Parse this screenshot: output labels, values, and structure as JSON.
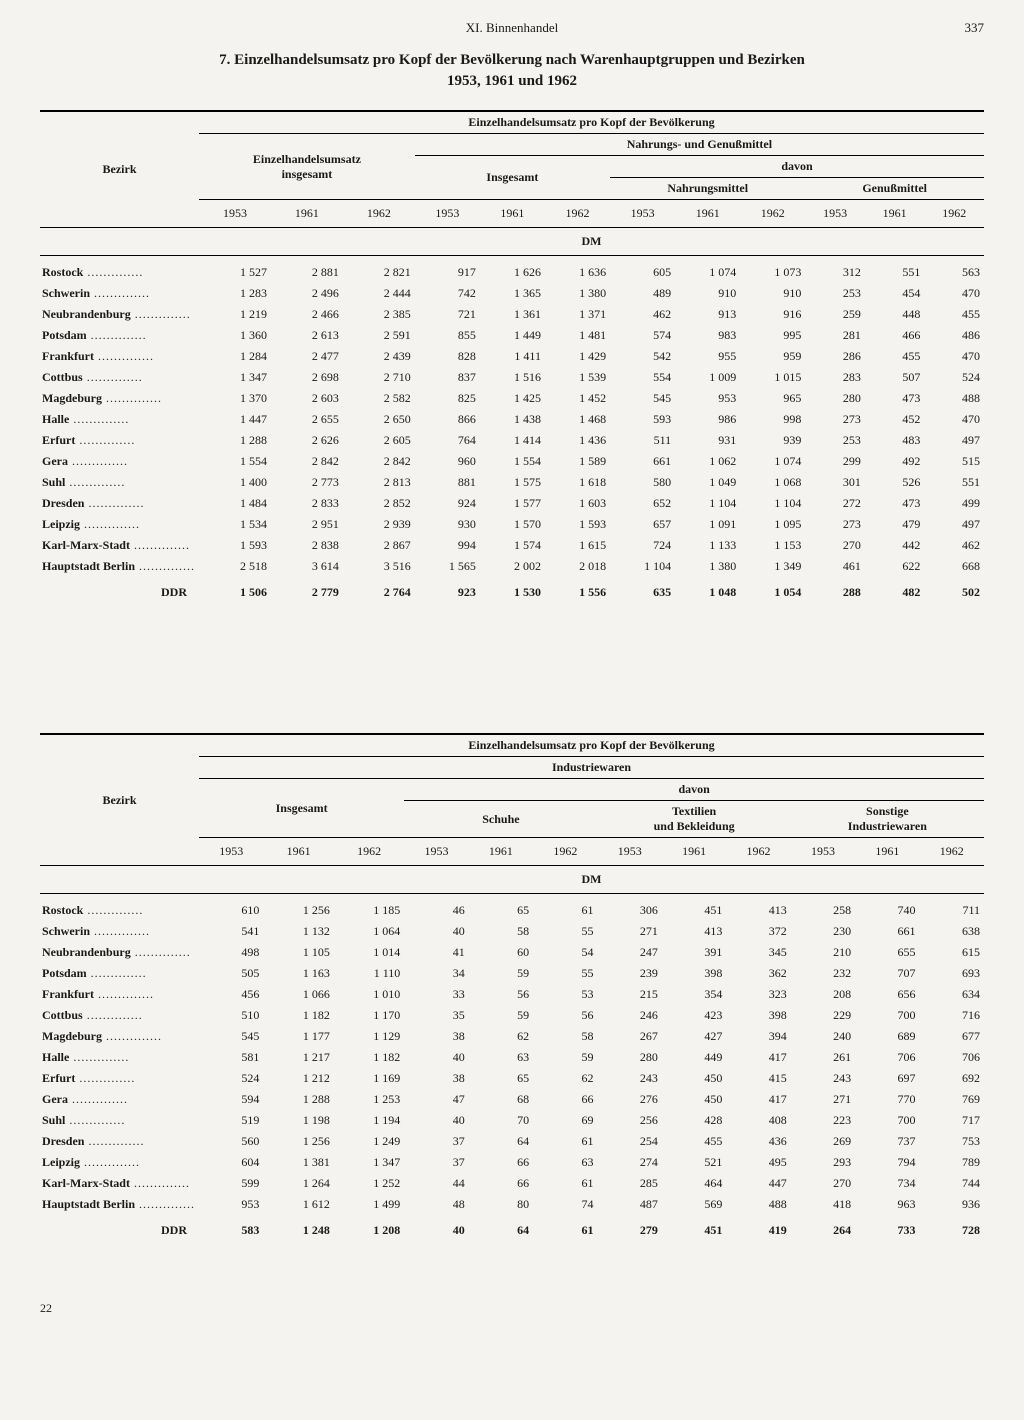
{
  "page": {
    "chapter": "XI. Binnenhandel",
    "pageNumber": "337",
    "footerNumber": "22",
    "tableTitle": "7. Einzelhandelsumsatz pro Kopf der Bevölkerung nach Warenhauptgruppen und Bezirken\n1953, 1961 und 1962"
  },
  "headers": {
    "bezirk": "Bezirk",
    "spanning1": "Einzelhandelsumsatz pro Kopf der Bevölkerung",
    "gesamt": "Einzelhandelsumsatz\ninsgesamt",
    "nahrung": "Nahrungs- und Genußmittel",
    "davon": "davon",
    "insgesamt": "Insgesamt",
    "nahrungsmittel": "Nahrungsmittel",
    "genussmittel": "Genußmittel",
    "industriewaren": "Industriewaren",
    "schuhe": "Schuhe",
    "textilien": "Textilien\nund Bekleidung",
    "sonstige": "Sonstige\nIndustriewaren",
    "y1953": "1953",
    "y1961": "1961",
    "y1962": "1962",
    "unit": "DM",
    "ddr": "DDR"
  },
  "districts": [
    "Rostock",
    "Schwerin",
    "Neubrandenburg",
    "Potsdam",
    "Frankfurt",
    "Cottbus",
    "Magdeburg",
    "Halle",
    "Erfurt",
    "Gera",
    "Suhl",
    "Dresden",
    "Leipzig",
    "Karl-Marx-Stadt",
    "Hauptstadt Berlin"
  ],
  "table1": {
    "rows": [
      [
        "1 527",
        "2 881",
        "2 821",
        "917",
        "1 626",
        "1 636",
        "605",
        "1 074",
        "1 073",
        "312",
        "551",
        "563"
      ],
      [
        "1 283",
        "2 496",
        "2 444",
        "742",
        "1 365",
        "1 380",
        "489",
        "910",
        "910",
        "253",
        "454",
        "470"
      ],
      [
        "1 219",
        "2 466",
        "2 385",
        "721",
        "1 361",
        "1 371",
        "462",
        "913",
        "916",
        "259",
        "448",
        "455"
      ],
      [
        "1 360",
        "2 613",
        "2 591",
        "855",
        "1 449",
        "1 481",
        "574",
        "983",
        "995",
        "281",
        "466",
        "486"
      ],
      [
        "1 284",
        "2 477",
        "2 439",
        "828",
        "1 411",
        "1 429",
        "542",
        "955",
        "959",
        "286",
        "455",
        "470"
      ],
      [
        "1 347",
        "2 698",
        "2 710",
        "837",
        "1 516",
        "1 539",
        "554",
        "1 009",
        "1 015",
        "283",
        "507",
        "524"
      ],
      [
        "1 370",
        "2 603",
        "2 582",
        "825",
        "1 425",
        "1 452",
        "545",
        "953",
        "965",
        "280",
        "473",
        "488"
      ],
      [
        "1 447",
        "2 655",
        "2 650",
        "866",
        "1 438",
        "1 468",
        "593",
        "986",
        "998",
        "273",
        "452",
        "470"
      ],
      [
        "1 288",
        "2 626",
        "2 605",
        "764",
        "1 414",
        "1 436",
        "511",
        "931",
        "939",
        "253",
        "483",
        "497"
      ],
      [
        "1 554",
        "2 842",
        "2 842",
        "960",
        "1 554",
        "1 589",
        "661",
        "1 062",
        "1 074",
        "299",
        "492",
        "515"
      ],
      [
        "1 400",
        "2 773",
        "2 813",
        "881",
        "1 575",
        "1 618",
        "580",
        "1 049",
        "1 068",
        "301",
        "526",
        "551"
      ],
      [
        "1 484",
        "2 833",
        "2 852",
        "924",
        "1 577",
        "1 603",
        "652",
        "1 104",
        "1 104",
        "272",
        "473",
        "499"
      ],
      [
        "1 534",
        "2 951",
        "2 939",
        "930",
        "1 570",
        "1 593",
        "657",
        "1 091",
        "1 095",
        "273",
        "479",
        "497"
      ],
      [
        "1 593",
        "2 838",
        "2 867",
        "994",
        "1 574",
        "1 615",
        "724",
        "1 133",
        "1 153",
        "270",
        "442",
        "462"
      ],
      [
        "2 518",
        "3 614",
        "3 516",
        "1 565",
        "2 002",
        "2 018",
        "1 104",
        "1 380",
        "1 349",
        "461",
        "622",
        "668"
      ]
    ],
    "ddr": [
      "1 506",
      "2 779",
      "2 764",
      "923",
      "1 530",
      "1 556",
      "635",
      "1 048",
      "1 054",
      "288",
      "482",
      "502"
    ]
  },
  "table2": {
    "rows": [
      [
        "610",
        "1 256",
        "1 185",
        "46",
        "65",
        "61",
        "306",
        "451",
        "413",
        "258",
        "740",
        "711"
      ],
      [
        "541",
        "1 132",
        "1 064",
        "40",
        "58",
        "55",
        "271",
        "413",
        "372",
        "230",
        "661",
        "638"
      ],
      [
        "498",
        "1 105",
        "1 014",
        "41",
        "60",
        "54",
        "247",
        "391",
        "345",
        "210",
        "655",
        "615"
      ],
      [
        "505",
        "1 163",
        "1 110",
        "34",
        "59",
        "55",
        "239",
        "398",
        "362",
        "232",
        "707",
        "693"
      ],
      [
        "456",
        "1 066",
        "1 010",
        "33",
        "56",
        "53",
        "215",
        "354",
        "323",
        "208",
        "656",
        "634"
      ],
      [
        "510",
        "1 182",
        "1 170",
        "35",
        "59",
        "56",
        "246",
        "423",
        "398",
        "229",
        "700",
        "716"
      ],
      [
        "545",
        "1 177",
        "1 129",
        "38",
        "62",
        "58",
        "267",
        "427",
        "394",
        "240",
        "689",
        "677"
      ],
      [
        "581",
        "1 217",
        "1 182",
        "40",
        "63",
        "59",
        "280",
        "449",
        "417",
        "261",
        "706",
        "706"
      ],
      [
        "524",
        "1 212",
        "1 169",
        "38",
        "65",
        "62",
        "243",
        "450",
        "415",
        "243",
        "697",
        "692"
      ],
      [
        "594",
        "1 288",
        "1 253",
        "47",
        "68",
        "66",
        "276",
        "450",
        "417",
        "271",
        "770",
        "769"
      ],
      [
        "519",
        "1 198",
        "1 194",
        "40",
        "70",
        "69",
        "256",
        "428",
        "408",
        "223",
        "700",
        "717"
      ],
      [
        "560",
        "1 256",
        "1 249",
        "37",
        "64",
        "61",
        "254",
        "455",
        "436",
        "269",
        "737",
        "753"
      ],
      [
        "604",
        "1 381",
        "1 347",
        "37",
        "66",
        "63",
        "274",
        "521",
        "495",
        "293",
        "794",
        "789"
      ],
      [
        "599",
        "1 264",
        "1 252",
        "44",
        "66",
        "61",
        "285",
        "464",
        "447",
        "270",
        "734",
        "744"
      ],
      [
        "953",
        "1 612",
        "1 499",
        "48",
        "80",
        "74",
        "487",
        "569",
        "488",
        "418",
        "963",
        "936"
      ]
    ],
    "ddr": [
      "583",
      "1 248",
      "1 208",
      "40",
      "64",
      "61",
      "279",
      "451",
      "419",
      "264",
      "733",
      "728"
    ]
  },
  "style": {
    "background_color": "#f5f3ef",
    "text_color": "#1a1a1a",
    "rule_color": "#000000",
    "header_fontsize": 13,
    "title_fontsize": 15,
    "table_fontsize": 12,
    "font_family": "Georgia/Times serif"
  }
}
